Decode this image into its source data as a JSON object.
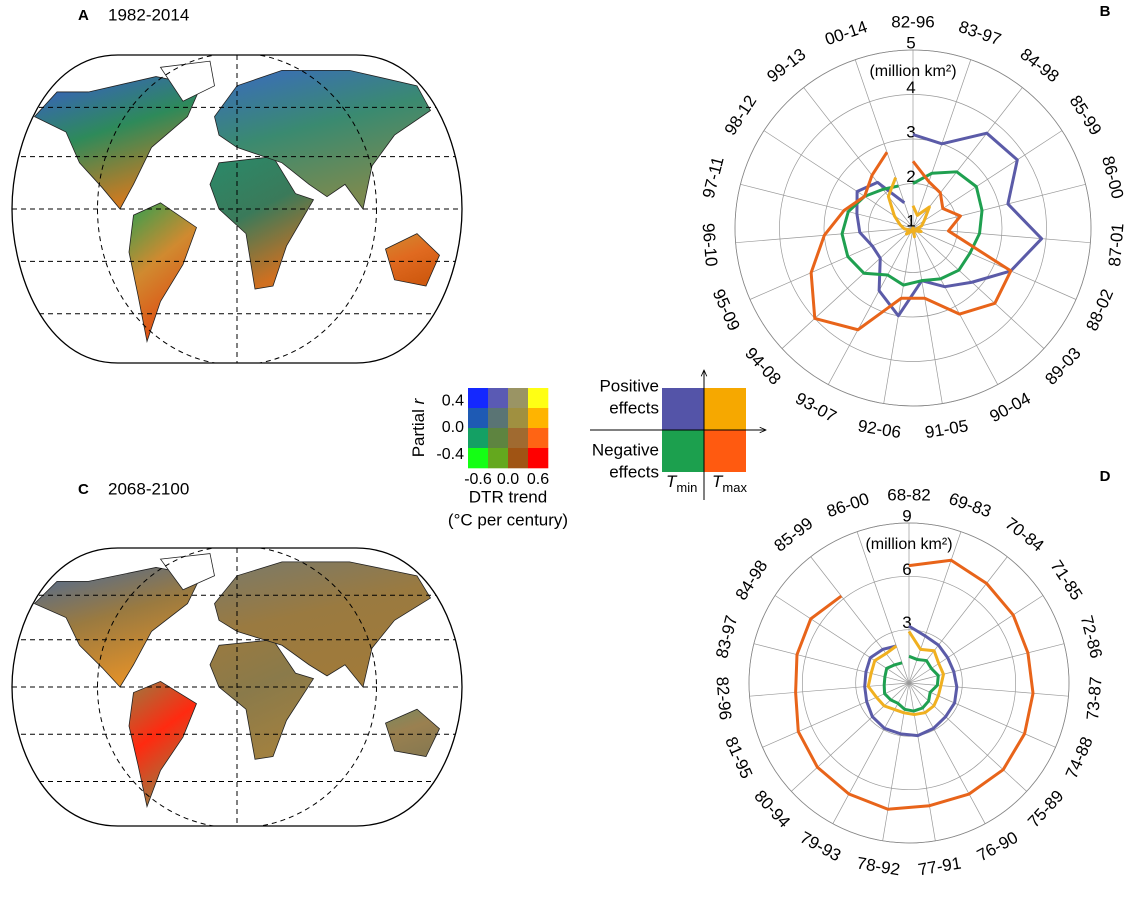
{
  "panels": {
    "a": {
      "letter": "A",
      "period": "1982-2014"
    },
    "c": {
      "letter": "C",
      "period": "2068-2100"
    }
  },
  "bivariate_legend": {
    "ylabel": [
      "Partial",
      "r"
    ],
    "ylim": [
      -0.6,
      0.6
    ],
    "yticks": [
      0.4,
      {
        "value": 0,
        "label": "0.0"
      },
      -0.4
    ],
    "xlim": [
      -0.8,
      0.8
    ],
    "xticks": [
      -0.6,
      {
        "value": 0,
        "label": "0.0"
      },
      0.6
    ],
    "xlabel": [
      "DTR trend",
      "(°C per century)"
    ],
    "colors": [
      [
        "#1428ff",
        "#5a5ab4",
        "#9a9464",
        "#ffff14"
      ],
      [
        "#1e5ab4",
        "#5a7474",
        "#a09040",
        "#ffb400"
      ],
      [
        "#14a064",
        "#5e8440",
        "#a06a30",
        "#ff6414"
      ],
      [
        "#14ff14",
        "#64a81e",
        "#a05414",
        "#ff0000"
      ]
    ]
  },
  "effects_legend": {
    "positive": [
      "Positive",
      "effects"
    ],
    "negative": [
      "Negative",
      "effects"
    ],
    "tmin": {
      "symbol": "T",
      "sub": "min"
    },
    "tmax": {
      "symbol": "T",
      "sub": "max"
    },
    "colors": {
      "positive_tmin": "#5454a8",
      "positive_tmax": "#f6a800",
      "negative_tmin": "#1ca04e",
      "negative_tmax": "#ff5a10"
    }
  },
  "chart_data": [
    {
      "type": "radar",
      "panel": "B",
      "unit": "(million km²)",
      "categories": [
        "82-96",
        "83-97",
        "84-98",
        "85-99",
        "86-00",
        "87-01",
        "88-02",
        "89-03",
        "90-04",
        "91-05",
        "92-06",
        "93-07",
        "94-08",
        "95-09",
        "96-10",
        "97-11",
        "98-12",
        "99-13",
        "00-14"
      ],
      "rlim": [
        1,
        5
      ],
      "rticks": [
        1,
        2,
        3,
        4,
        5
      ],
      "grid": true,
      "series": [
        {
          "color": "#5b5ba8",
          "values": [
            3.1,
            3.0,
            3.7,
            3.8,
            3.2,
            3.9,
            3.4,
            2.8,
            2.5,
            2.2,
            3.0,
            2.6,
            2.0,
            2.0,
            2.2,
            2.3,
            2.5,
            2.3,
            1.6
          ]
        },
        {
          "color": "#1fa050",
          "values": [
            2.0,
            2.3,
            2.6,
            2.7,
            2.6,
            2.5,
            2.4,
            2.4,
            2.3,
            2.2,
            2.3,
            2.2,
            2.5,
            2.6,
            2.6,
            2.5,
            2.3,
            2.1,
            2.0
          ]
        },
        {
          "color": "#e8641a",
          "values": [
            2.5,
            2.1,
            2.0,
            1.8,
            2.1,
            1.8,
            3.4,
            3.5,
            3.2,
            2.6,
            2.6,
            3.6,
            4.0,
            3.5,
            3.0,
            2.6,
            2.3,
            2.5,
            2.8
          ]
        },
        {
          "color": "#f0b020",
          "values": [
            1.5,
            1.3,
            1.6,
            1.3,
            1.2,
            1.1,
            1.2,
            1.1,
            1.0,
            1.2,
            1.0,
            1.1,
            1.2,
            1.1,
            1.2,
            1.3,
            1.5,
            1.9,
            2.2
          ]
        }
      ]
    },
    {
      "type": "radar",
      "panel": "D",
      "unit": "(million km²)",
      "categories": [
        "68-82",
        "69-83",
        "70-84",
        "71-85",
        "72-86",
        "73-87",
        "74-88",
        "75-89",
        "76-90",
        "77-91",
        "78-92",
        "79-93",
        "80-94",
        "81-95",
        "82-96",
        "83-97",
        "84-98",
        "85-99",
        "86-00"
      ],
      "rlim": [
        0,
        9
      ],
      "rticks": [
        3,
        6,
        9
      ],
      "grid": true,
      "series": [
        {
          "color": "#e8641a",
          "values": [
            6.6,
            7.3,
            7.1,
            7.0,
            6.9,
            7.0,
            7.1,
            7.2,
            7.1,
            7.0,
            7.2,
            7.1,
            7.0,
            6.8,
            6.4,
            6.5,
            6.6,
            6.2,
            null
          ]
        },
        {
          "color": "#5b5ba8",
          "values": [
            3.2,
            2.8,
            2.7,
            2.6,
            2.6,
            2.7,
            2.8,
            2.8,
            2.9,
            3.0,
            2.9,
            2.9,
            2.8,
            2.6,
            2.5,
            2.5,
            2.6,
            2.4,
            2.2
          ]
        },
        {
          "color": "#f0b020",
          "values": [
            2.9,
            2.0,
            2.3,
            2.0,
            2.0,
            1.8,
            1.8,
            1.9,
            1.9,
            1.8,
            1.7,
            1.7,
            1.9,
            2.0,
            2.3,
            2.2,
            2.3,
            2.1,
            2.2
          ]
        },
        {
          "color": "#1fa050",
          "values": [
            1.5,
            1.4,
            1.6,
            1.5,
            1.7,
            1.6,
            1.3,
            1.5,
            1.6,
            1.6,
            1.5,
            1.3,
            1.4,
            1.5,
            1.4,
            1.4,
            1.5,
            1.3,
            1.2
          ]
        }
      ]
    }
  ]
}
